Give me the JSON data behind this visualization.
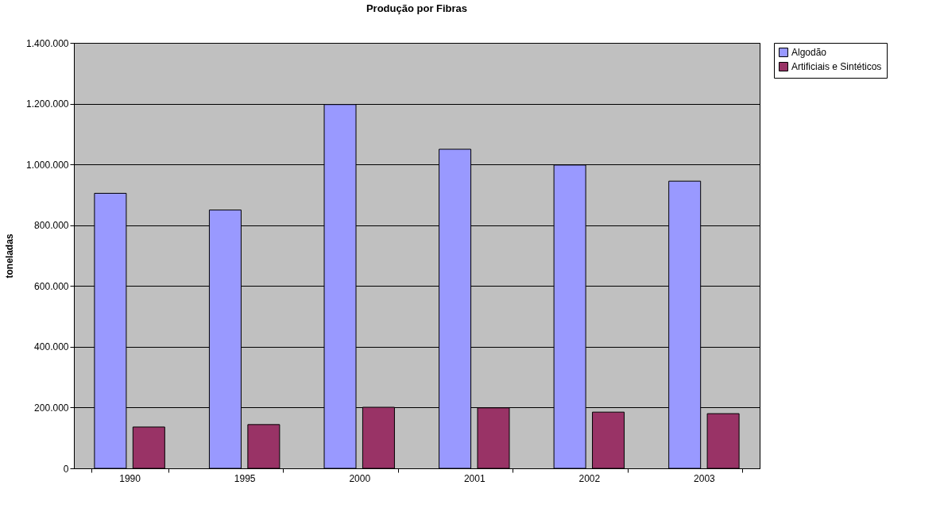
{
  "chart_data": {
    "type": "bar",
    "title": "Produção por Fibras",
    "ylabel": "toneladas",
    "categories": [
      "1990",
      "1995",
      "2000",
      "2001",
      "2002",
      "2003"
    ],
    "series": [
      {
        "name": "Algodão",
        "color": "#9999ff",
        "values": [
          905000,
          850000,
          1197000,
          1050000,
          998000,
          945000
        ]
      },
      {
        "name": "Artificiais e Sintéticos",
        "color": "#993366",
        "values": [
          136000,
          144000,
          201000,
          199000,
          185000,
          180000
        ]
      }
    ],
    "ylim": [
      0,
      1400000
    ],
    "yticks": [
      {
        "value": 0,
        "label": "0"
      },
      {
        "value": 200000,
        "label": "200.000"
      },
      {
        "value": 400000,
        "label": "400.000"
      },
      {
        "value": 600000,
        "label": "600.000"
      },
      {
        "value": 800000,
        "label": "800.000"
      },
      {
        "value": 1000000,
        "label": "1.000.000"
      },
      {
        "value": 1200000,
        "label": "1.200.000"
      },
      {
        "value": 1400000,
        "label": "1.400.000"
      }
    ],
    "grid": "y",
    "legend": "right"
  }
}
